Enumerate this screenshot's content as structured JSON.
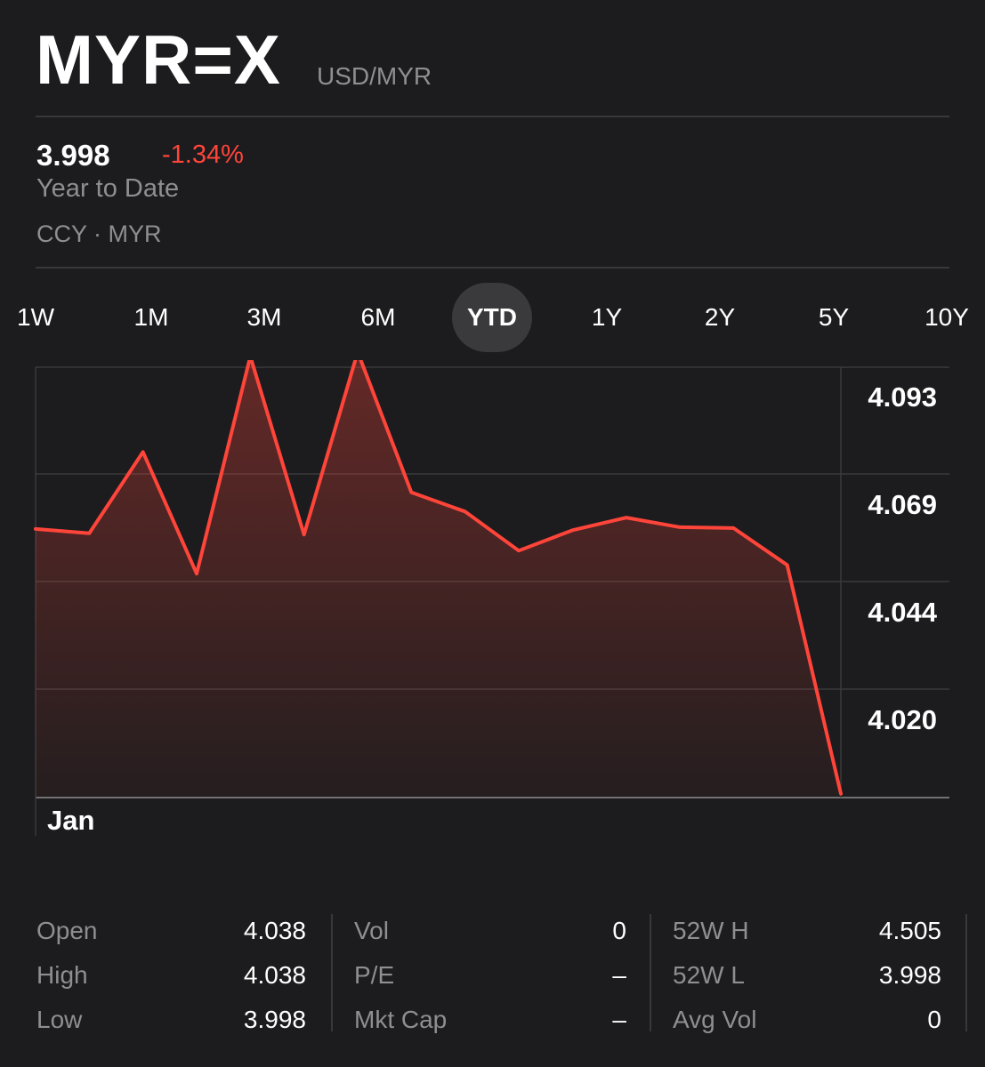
{
  "header": {
    "symbol": "MYR=X",
    "pair": "USD/MYR",
    "price": "3.998",
    "change": "-1.34%",
    "period_label": "Year to Date",
    "ccy": "CCY · MYR"
  },
  "colors": {
    "background": "#1c1c1e",
    "accent_negative": "#ff453a",
    "muted": "#8e8e93",
    "active_tab_bg": "#3a3a3c"
  },
  "tabs": [
    {
      "label": "1W",
      "active": false
    },
    {
      "label": "1M",
      "active": false
    },
    {
      "label": "3M",
      "active": false
    },
    {
      "label": "6M",
      "active": false
    },
    {
      "label": "YTD",
      "active": true
    },
    {
      "label": "1Y",
      "active": false
    },
    {
      "label": "2Y",
      "active": false
    },
    {
      "label": "5Y",
      "active": false
    },
    {
      "label": "10Y",
      "active": false
    }
  ],
  "chart_data": {
    "type": "area",
    "x_tick_labels": [
      "Jan"
    ],
    "y_tick_labels": [
      "4.093",
      "4.069",
      "4.044",
      "4.020"
    ],
    "ylim": [
      4.001,
      4.1
    ],
    "series": [
      {
        "values": [
          4.0628,
          4.0618,
          4.0805,
          4.0525,
          4.1025,
          4.0615,
          4.1035,
          4.0712,
          4.0668,
          4.0578,
          4.0625,
          4.0654,
          4.0632,
          4.063,
          4.0545,
          4.0019
        ]
      }
    ],
    "grid": true,
    "color": "#ff453a"
  },
  "stats": {
    "col1": [
      {
        "label": "Open",
        "value": "4.038"
      },
      {
        "label": "High",
        "value": "4.038"
      },
      {
        "label": "Low",
        "value": "3.998"
      }
    ],
    "col2": [
      {
        "label": "Vol",
        "value": "0"
      },
      {
        "label": "P/E",
        "value": "–"
      },
      {
        "label": "Mkt Cap",
        "value": "–"
      }
    ],
    "col3": [
      {
        "label": "52W H",
        "value": "4.505"
      },
      {
        "label": "52W L",
        "value": "3.998"
      },
      {
        "label": "Avg Vol",
        "value": "0"
      }
    ]
  }
}
